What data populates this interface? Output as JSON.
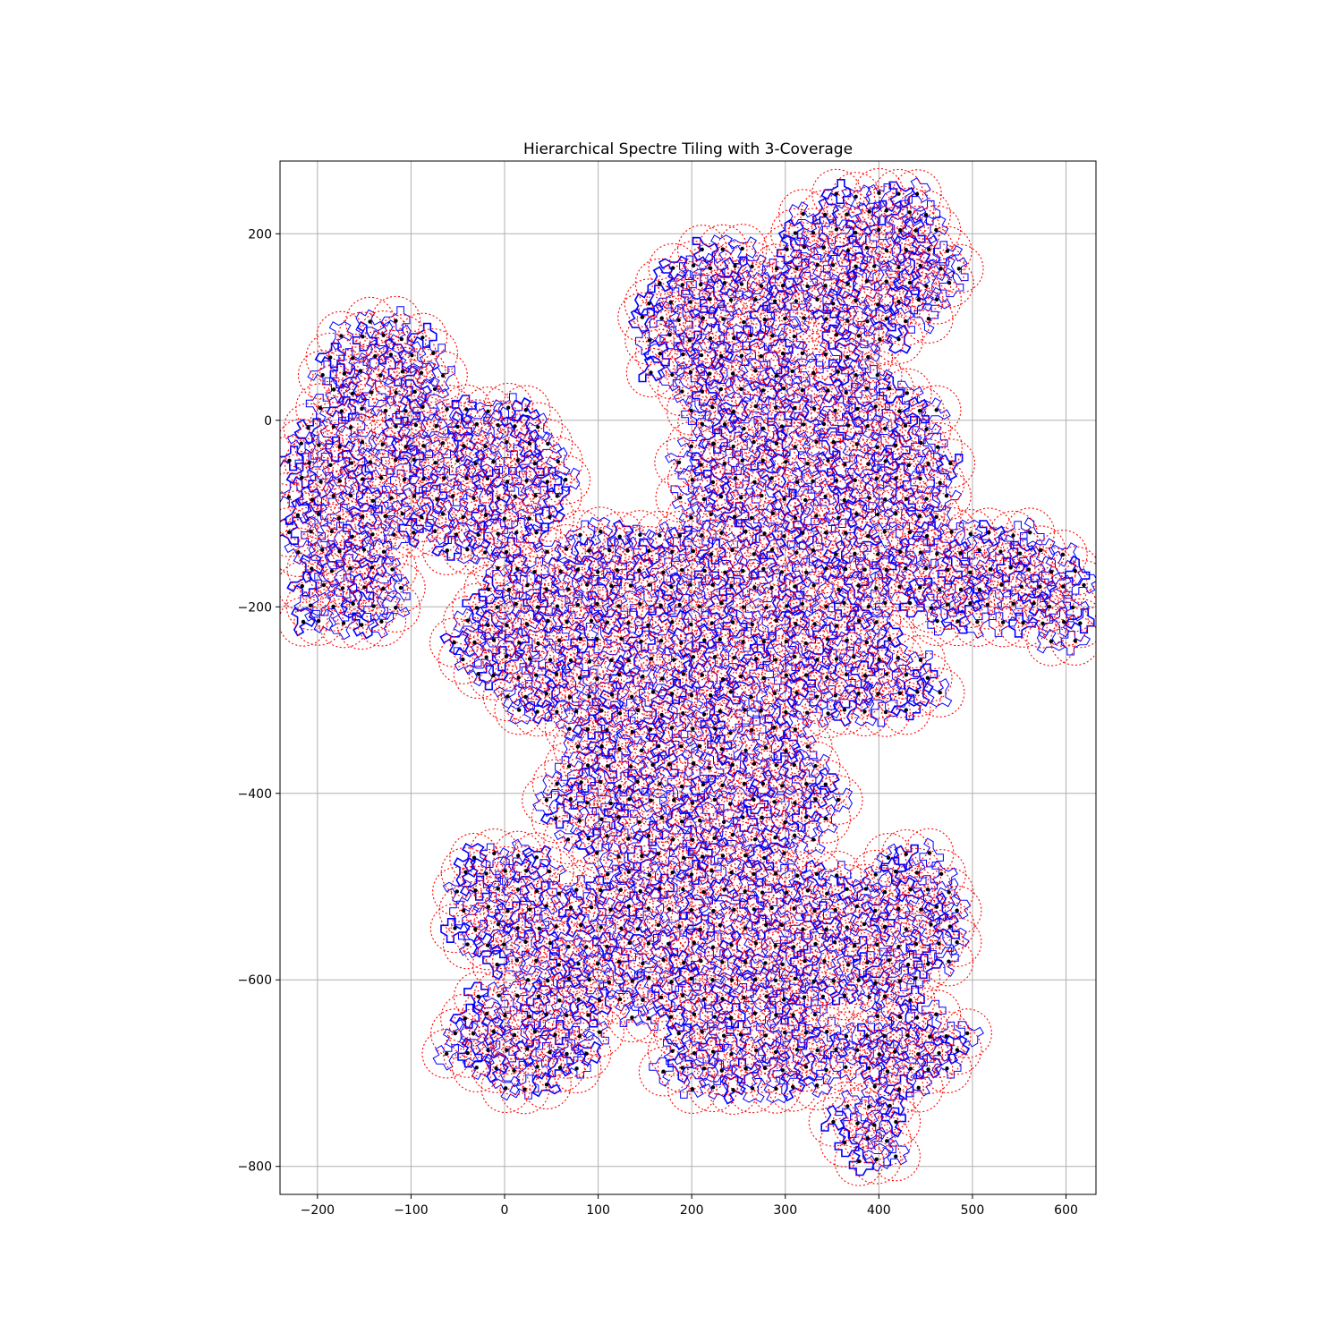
{
  "chart_data": {
    "type": "scatter",
    "title": "Hierarchical Spectre Tiling with 3-Coverage",
    "xlabel": "",
    "ylabel": "",
    "xlim": [
      -240,
      632
    ],
    "ylim": [
      -830,
      278
    ],
    "xticks": [
      -200,
      -100,
      0,
      100,
      200,
      300,
      400,
      500,
      600
    ],
    "xtick_labels": [
      "−200",
      "−100",
      "0",
      "100",
      "200",
      "300",
      "400",
      "500",
      "600"
    ],
    "yticks": [
      -800,
      -600,
      -400,
      -200,
      0,
      200
    ],
    "ytick_labels": [
      "−800",
      "−600",
      "−400",
      "−200",
      "0",
      "200"
    ],
    "grid": true,
    "legend": "none",
    "tile_spacing": 22,
    "coverage_radius": 26,
    "tile_regions": [
      {
        "name": "top-left-arm",
        "center": [
          -130,
          50
        ],
        "rx": 70,
        "ry": 60
      },
      {
        "name": "left-arm",
        "center": [
          -180,
          -90
        ],
        "rx": 60,
        "ry": 110
      },
      {
        "name": "upper-left-body",
        "center": [
          -40,
          -60
        ],
        "rx": 110,
        "ry": 90
      },
      {
        "name": "left-lobe",
        "center": [
          -170,
          -180
        ],
        "rx": 60,
        "ry": 55
      },
      {
        "name": "top-center-arm",
        "center": [
          230,
          100
        ],
        "rx": 90,
        "ry": 90
      },
      {
        "name": "top-right-arm",
        "center": [
          390,
          170
        ],
        "rx": 100,
        "ry": 90
      },
      {
        "name": "upper-right-body",
        "center": [
          330,
          -50
        ],
        "rx": 150,
        "ry": 130
      },
      {
        "name": "right-arm",
        "center": [
          520,
          -170
        ],
        "rx": 100,
        "ry": 60
      },
      {
        "name": "far-right-lobe",
        "center": [
          590,
          -210
        ],
        "rx": 40,
        "ry": 35
      },
      {
        "name": "center-body",
        "center": [
          180,
          -230
        ],
        "rx": 240,
        "ry": 120
      },
      {
        "name": "lower-right-lobe",
        "center": [
          400,
          -280
        ],
        "rx": 70,
        "ry": 45
      },
      {
        "name": "middle-body",
        "center": [
          200,
          -400
        ],
        "rx": 160,
        "ry": 100
      },
      {
        "name": "lower-left-lobe",
        "center": [
          0,
          -520
        ],
        "rx": 60,
        "ry": 70
      },
      {
        "name": "lower-body",
        "center": [
          230,
          -560
        ],
        "rx": 230,
        "ry": 90
      },
      {
        "name": "lower-right-arm",
        "center": [
          430,
          -530
        ],
        "rx": 60,
        "ry": 80
      },
      {
        "name": "bottom-left-arm",
        "center": [
          20,
          -660
        ],
        "rx": 90,
        "ry": 60
      },
      {
        "name": "bottom-center",
        "center": [
          270,
          -680
        ],
        "rx": 110,
        "ry": 50
      },
      {
        "name": "bottom-right",
        "center": [
          430,
          -670
        ],
        "rx": 70,
        "ry": 50
      },
      {
        "name": "bottom-tail",
        "center": [
          390,
          -760
        ],
        "rx": 40,
        "ry": 50
      }
    ],
    "colors": {
      "tile_edge": "#0000ff",
      "coverage_circle": "#ff0000",
      "tile_center": "#000000",
      "grid": "#b0b0b0"
    }
  }
}
